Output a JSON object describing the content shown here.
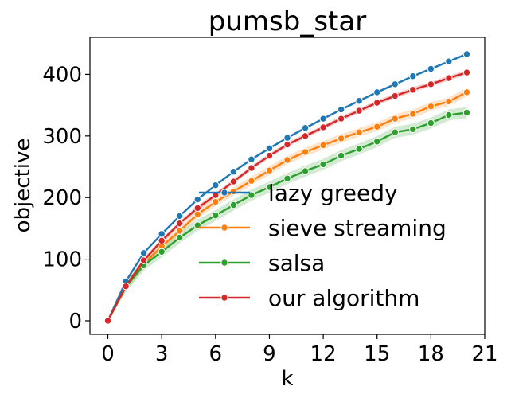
{
  "chart_data": {
    "type": "line",
    "title": "pumsb_star",
    "xlabel": "k",
    "ylabel": "objective",
    "xlim": [
      -1,
      21
    ],
    "ylim": [
      -22,
      460
    ],
    "xticks": [
      0,
      3,
      6,
      9,
      12,
      15,
      18,
      21
    ],
    "yticks": [
      0,
      100,
      200,
      300,
      400
    ],
    "grid": false,
    "legend_position": "lower-right",
    "x": [
      0,
      1,
      2,
      3,
      4,
      5,
      6,
      7,
      8,
      9,
      10,
      11,
      12,
      13,
      14,
      15,
      16,
      17,
      18,
      19,
      20
    ],
    "series": [
      {
        "name": "lazy greedy",
        "color": "#1f77b4",
        "values": [
          0,
          64,
          110,
          141,
          170,
          197,
          220,
          242,
          262,
          280,
          297,
          313,
          328,
          343,
          357,
          371,
          384,
          397,
          409,
          421,
          433
        ],
        "band": 2
      },
      {
        "name": "sieve streaming",
        "color": "#ff7f0e",
        "values": [
          0,
          56,
          92,
          121,
          146,
          173,
          193,
          210,
          227,
          244,
          261,
          274,
          285,
          296,
          306,
          315,
          328,
          336,
          348,
          356,
          371
        ],
        "band": 7
      },
      {
        "name": "salsa",
        "color": "#2ca02c",
        "values": [
          0,
          55,
          90,
          112,
          135,
          155,
          171,
          188,
          204,
          217,
          231,
          243,
          254,
          268,
          279,
          291,
          306,
          311,
          321,
          334,
          338
        ],
        "band": 9
      },
      {
        "name": "our algorithm",
        "color": "#d62728",
        "values": [
          0,
          56,
          98,
          130,
          158,
          183,
          204,
          226,
          248,
          268,
          286,
          300,
          314,
          328,
          341,
          354,
          365,
          375,
          384,
          394,
          403
        ],
        "band": 4
      }
    ]
  }
}
